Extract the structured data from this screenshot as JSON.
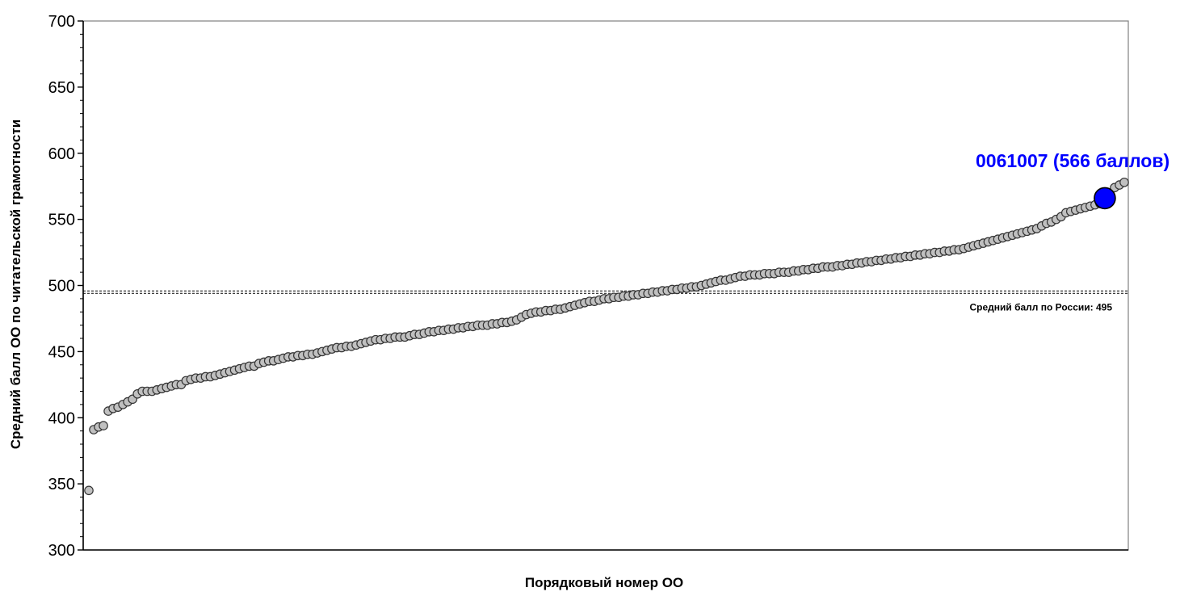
{
  "chart_data": {
    "type": "scatter",
    "title": "",
    "xlabel": "Порядковый номер ОО",
    "ylabel": "Средний балл ОО по читательской грамотности",
    "ylim": [
      300,
      700
    ],
    "yticks": [
      "300",
      "350",
      "400",
      "450",
      "500",
      "550",
      "600",
      "650",
      "700"
    ],
    "grid": false,
    "point_color": "#c0c0c0",
    "series": [
      {
        "values": [
          345,
          391,
          393,
          394,
          405,
          407,
          408,
          410,
          412,
          414,
          418,
          420,
          420,
          420,
          421,
          422,
          423,
          424,
          425,
          425,
          428,
          429,
          430,
          430,
          431,
          431,
          432,
          433,
          434,
          435,
          436,
          437,
          438,
          439,
          439,
          441,
          442,
          443,
          443,
          444,
          445,
          446,
          446,
          447,
          447,
          448,
          448,
          449,
          450,
          451,
          452,
          453,
          453,
          454,
          454,
          455,
          456,
          457,
          458,
          459,
          459,
          460,
          460,
          461,
          461,
          461,
          462,
          463,
          463,
          464,
          465,
          465,
          466,
          466,
          467,
          467,
          468,
          468,
          469,
          469,
          470,
          470,
          470,
          471,
          471,
          472,
          472,
          473,
          474,
          476,
          478,
          479,
          480,
          480,
          481,
          481,
          482,
          482,
          483,
          484,
          485,
          486,
          487,
          488,
          488,
          489,
          490,
          490,
          491,
          491,
          492,
          492,
          493,
          493,
          494,
          494,
          495,
          495,
          496,
          496,
          497,
          497,
          498,
          498,
          499,
          499,
          500,
          501,
          502,
          503,
          504,
          504,
          505,
          506,
          507,
          507,
          508,
          508,
          508,
          509,
          509,
          509,
          510,
          510,
          510,
          511,
          511,
          512,
          512,
          513,
          513,
          514,
          514,
          514,
          515,
          515,
          516,
          516,
          517,
          517,
          518,
          518,
          519,
          519,
          520,
          520,
          521,
          521,
          522,
          522,
          523,
          523,
          524,
          524,
          525,
          525,
          526,
          526,
          527,
          527,
          528,
          529,
          530,
          531,
          532,
          533,
          534,
          535,
          536,
          537,
          538,
          539,
          540,
          541,
          542,
          543,
          545,
          547,
          548,
          550,
          552,
          555,
          556,
          557,
          558,
          559,
          560,
          561,
          562,
          566,
          570,
          574,
          576,
          578
        ]
      }
    ],
    "reference_line": {
      "value": 495,
      "label": "Средний балл по России: 495"
    },
    "highlight": {
      "index": 209,
      "value": 566,
      "label": "0061007 (566 баллов)",
      "color": "#0000ff"
    }
  }
}
